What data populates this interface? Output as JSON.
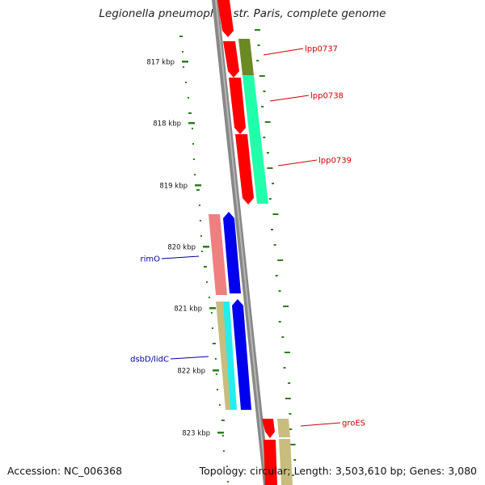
{
  "title": "Legionella pneumophila str. Paris, complete genome",
  "footer": {
    "accession": "Accession: NC_006368",
    "topology": "Topology: circular; Length: 3,503,610 bp; Genes: 3,080"
  },
  "ticks": [
    {
      "label": "817 kbp"
    },
    {
      "label": "818 kbp"
    },
    {
      "label": "819 kbp"
    },
    {
      "label": "820 kbp"
    },
    {
      "label": "821 kbp"
    },
    {
      "label": "822 kbp"
    },
    {
      "label": "823 kbp"
    }
  ],
  "gene_labels": [
    {
      "name": "lpp0737",
      "color": "#cc0000"
    },
    {
      "name": "lpp0738",
      "color": "#cc0000"
    },
    {
      "name": "lpp0739",
      "color": "#cc0000"
    },
    {
      "name": "rimO",
      "color": "#000099"
    },
    {
      "name": "dsbD/lidC",
      "color": "#000099"
    },
    {
      "name": "groES",
      "color": "#cc0000"
    }
  ],
  "colors": {
    "backbone": "#888888",
    "cds_forward": "#ff0000",
    "cds_reverse": "#0000ee",
    "gc_skew": "#2e7d1e",
    "olive": "#6b8a23",
    "spring_green": "#22ffaa",
    "salmon": "#f08080",
    "khaki": "#c8bd7c",
    "cyan": "#22eeee"
  }
}
